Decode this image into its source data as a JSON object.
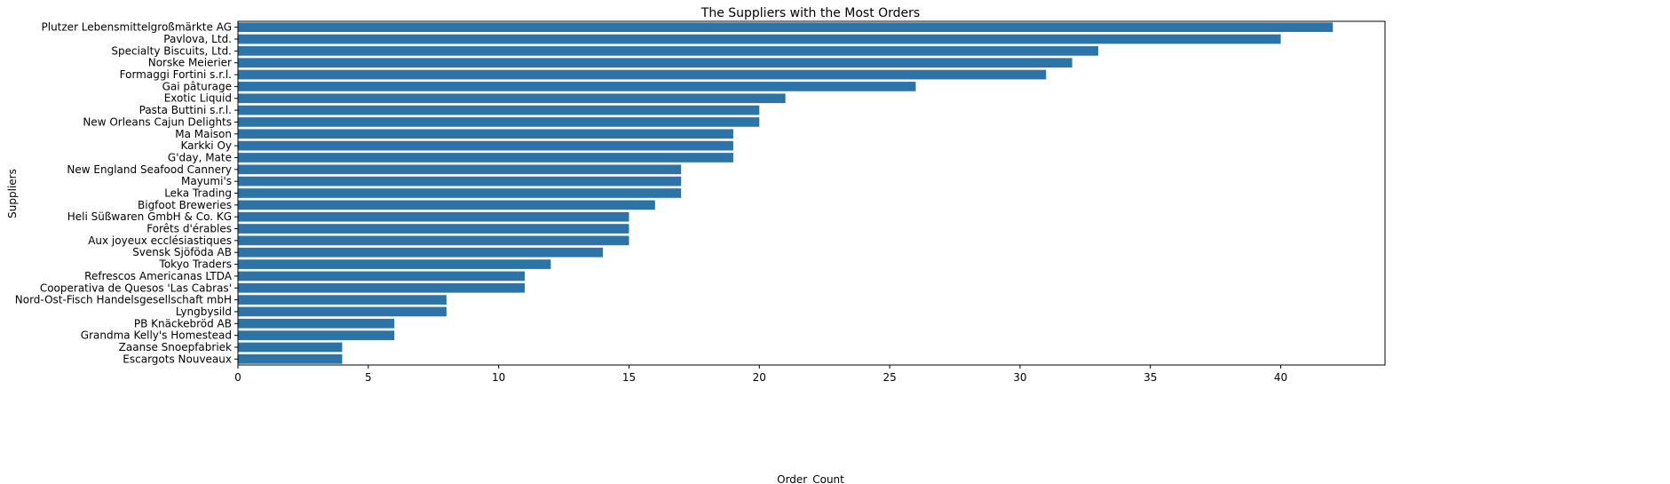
{
  "chart_data": {
    "type": "bar",
    "orientation": "horizontal",
    "title": "The Suppliers with the Most Orders",
    "xlabel": "Order_Count",
    "ylabel": "Suppliers",
    "xlim": [
      0,
      44
    ],
    "xticks": [
      0,
      5,
      10,
      15,
      20,
      25,
      30,
      35,
      40
    ],
    "grid": false,
    "bar_color": "#2c73a8",
    "categories": [
      "Plutzer Lebensmittelgroßmärkte AG",
      "Pavlova, Ltd.",
      "Specialty Biscuits, Ltd.",
      "Norske Meierier",
      "Formaggi Fortini s.r.l.",
      "Gai pâturage",
      "Exotic Liquid",
      "Pasta Buttini s.r.l.",
      "New Orleans Cajun Delights",
      "Ma Maison",
      "Karkki Oy",
      "G'day, Mate",
      "New England Seafood Cannery",
      "Mayumi's",
      "Leka Trading",
      "Bigfoot Breweries",
      "Heli Süßwaren GmbH & Co. KG",
      "Forêts d'érables",
      "Aux joyeux ecclésiastiques",
      "Svensk Sjöföda AB",
      "Tokyo Traders",
      "Refrescos Americanas LTDA",
      "Cooperativa de Quesos 'Las Cabras'",
      "Nord-Ost-Fisch Handelsgesellschaft mbH",
      "Lyngbysild",
      "PB Knäckebröd AB",
      "Grandma Kelly's Homestead",
      "Zaanse Snoepfabriek",
      "Escargots Nouveaux"
    ],
    "values": [
      42,
      40,
      33,
      32,
      31,
      26,
      21,
      20,
      20,
      19,
      19,
      19,
      17,
      17,
      17,
      16,
      15,
      15,
      15,
      14,
      12,
      11,
      11,
      8,
      8,
      6,
      6,
      4,
      4
    ]
  }
}
